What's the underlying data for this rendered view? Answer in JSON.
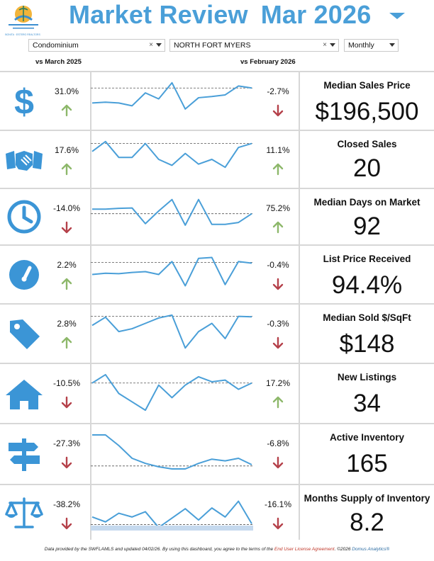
{
  "header": {
    "logo_text": "BONITA · ESTERO REALTORS",
    "title": "Market Review",
    "period": "Mar 2026"
  },
  "filters": {
    "property_type": "Condominium",
    "area": "NORTH FORT MYERS",
    "interval": "Monthly"
  },
  "columns": {
    "left": "vs March 2025",
    "right": "vs February 2026"
  },
  "colors": {
    "accent": "#4a9fd8",
    "up": "#8db86a",
    "down": "#b5414a"
  },
  "metrics": [
    {
      "icon": "dollar-icon",
      "label": "Median Sales Price",
      "value": "$196,500",
      "yoy": "31.0%",
      "yoy_dir": "up",
      "mom": "-2.7%",
      "mom_dir": "down",
      "spark": [
        0.55,
        0.53,
        0.55,
        0.62,
        0.3,
        0.45,
        0.05,
        0.7,
        0.42,
        0.39,
        0.35,
        0.13,
        0.18
      ],
      "ref": 0.18
    },
    {
      "icon": "handshake-icon",
      "label": "Closed Sales",
      "value": "20",
      "yoy": "17.6%",
      "yoy_dir": "up",
      "mom": "11.1%",
      "mom_dir": "up",
      "spark": [
        0.3,
        0.05,
        0.45,
        0.45,
        0.1,
        0.5,
        0.65,
        0.35,
        0.62,
        0.5,
        0.7,
        0.2,
        0.1
      ],
      "ref": 0.1
    },
    {
      "icon": "clock-icon",
      "label": "Median Days on Market",
      "value": "92",
      "yoy": "-14.0%",
      "yoy_dir": "down",
      "mom": "75.2%",
      "mom_dir": "up",
      "spark": [
        0.3,
        0.3,
        0.28,
        0.27,
        0.68,
        0.35,
        0.05,
        0.72,
        0.05,
        0.7,
        0.7,
        0.65,
        0.42
      ],
      "ref": 0.42
    },
    {
      "icon": "gauge-icon",
      "label": "List Price Received",
      "value": "94.4%",
      "yoy": "2.2%",
      "yoy_dir": "up",
      "mom": "-0.4%",
      "mom_dir": "down",
      "spark": [
        0.5,
        0.47,
        0.48,
        0.45,
        0.43,
        0.5,
        0.18,
        0.78,
        0.1,
        0.08,
        0.75,
        0.18,
        0.22
      ],
      "ref": 0.2
    },
    {
      "icon": "tag-icon",
      "label": "Median Sold $/SqFt",
      "value": "$148",
      "yoy": "2.8%",
      "yoy_dir": "up",
      "mom": "-0.3%",
      "mom_dir": "down",
      "spark": [
        0.3,
        0.1,
        0.45,
        0.38,
        0.25,
        0.12,
        0.05,
        0.85,
        0.45,
        0.25,
        0.62,
        0.08,
        0.09
      ],
      "ref": 0.08
    },
    {
      "icon": "house-icon",
      "label": "New Listings",
      "value": "34",
      "yoy": "-10.5%",
      "yoy_dir": "down",
      "mom": "17.2%",
      "mom_dir": "up",
      "spark": [
        0.25,
        0.05,
        0.5,
        0.7,
        0.9,
        0.3,
        0.6,
        0.3,
        0.1,
        0.22,
        0.18,
        0.4,
        0.25
      ],
      "ref": 0.25
    },
    {
      "icon": "signpost-icon",
      "label": "Active Inventory",
      "value": "165",
      "yoy": "-27.3%",
      "yoy_dir": "down",
      "mom": "-6.8%",
      "mom_dir": "down",
      "spark": [
        0.05,
        0.05,
        0.3,
        0.6,
        0.72,
        0.8,
        0.85,
        0.85,
        0.72,
        0.62,
        0.66,
        0.6,
        0.75
      ],
      "ref": 0.78
    },
    {
      "icon": "scale-icon",
      "label": "Months Supply of Inventory",
      "value": "8.2",
      "yoy": "-38.2%",
      "yoy_dir": "down",
      "mom": "-16.1%",
      "mom_dir": "down",
      "spark": [
        0.62,
        0.75,
        0.52,
        0.62,
        0.48,
        0.9,
        0.65,
        0.4,
        0.7,
        0.38,
        0.62,
        0.2,
        0.8
      ],
      "ref": 0.82
    }
  ],
  "footer": {
    "prefix": "Data provided by the SWFLAMLS and updated 04/02/26.  By using this dashboard, you agree to the terms of the ",
    "eula": "End User License Agreement",
    "middle": ".  ©2026 ",
    "brand": "Domus Analytics®"
  }
}
